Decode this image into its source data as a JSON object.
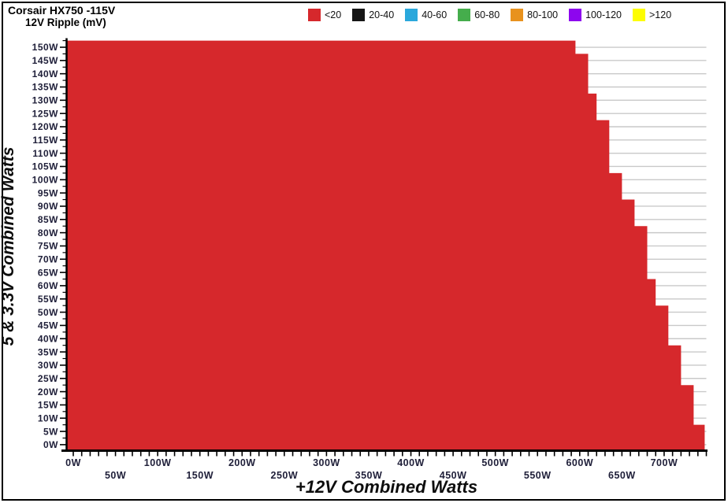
{
  "title": {
    "line1": "Corsair HX750 -115V",
    "line2": "12V Ripple (mV)"
  },
  "legend": {
    "items": [
      {
        "label": "<20",
        "color": "#d6282c"
      },
      {
        "label": "20-40",
        "color": "#161616"
      },
      {
        "label": "40-60",
        "color": "#2aa8dc"
      },
      {
        "label": "60-80",
        "color": "#45ad4c"
      },
      {
        "label": "80-100",
        "color": "#e8921e"
      },
      {
        "label": "100-120",
        "color": "#8d06ee"
      },
      {
        "label": ">120",
        "color": "#fdfd02"
      }
    ]
  },
  "chart_data": {
    "type": "bar",
    "subtype": "horizontal-stepped-area",
    "title": "Corsair HX750 -115V 12V Ripple (mV)",
    "xlabel": "+12V Combined Watts",
    "ylabel": "5 & 3.3V Combined Watts",
    "xlim": [
      0,
      750
    ],
    "ylim": [
      0,
      150
    ],
    "x_tick_minor_step_watts": 10,
    "x_tick_label_step_watts": 50,
    "x_tick_labels": [
      "0W",
      "50W",
      "100W",
      "150W",
      "200W",
      "250W",
      "300W",
      "350W",
      "400W",
      "450W",
      "500W",
      "550W",
      "600W",
      "650W",
      "700W"
    ],
    "grid": "horizontal",
    "legend_position": "top",
    "categories": [
      "150W",
      "145W",
      "140W",
      "135W",
      "130W",
      "125W",
      "120W",
      "115W",
      "110W",
      "105W",
      "100W",
      "95W",
      "90W",
      "85W",
      "80W",
      "75W",
      "70W",
      "65W",
      "60W",
      "55W",
      "50W",
      "45W",
      "40W",
      "35W",
      "30W",
      "25W",
      "20W",
      "15W",
      "10W",
      "5W",
      "0W"
    ],
    "series": [
      {
        "name": "<20",
        "color": "#d6282c",
        "values": [
          595,
          610,
          610,
          610,
          620,
          620,
          635,
          635,
          635,
          635,
          650,
          650,
          665,
          665,
          680,
          680,
          680,
          680,
          690,
          690,
          705,
          705,
          705,
          720,
          720,
          720,
          735,
          735,
          735,
          748,
          748
        ]
      }
    ],
    "colors": {
      "grid": "#c9c9c9",
      "axis": "#000000",
      "tick_label": "#20203a"
    }
  }
}
